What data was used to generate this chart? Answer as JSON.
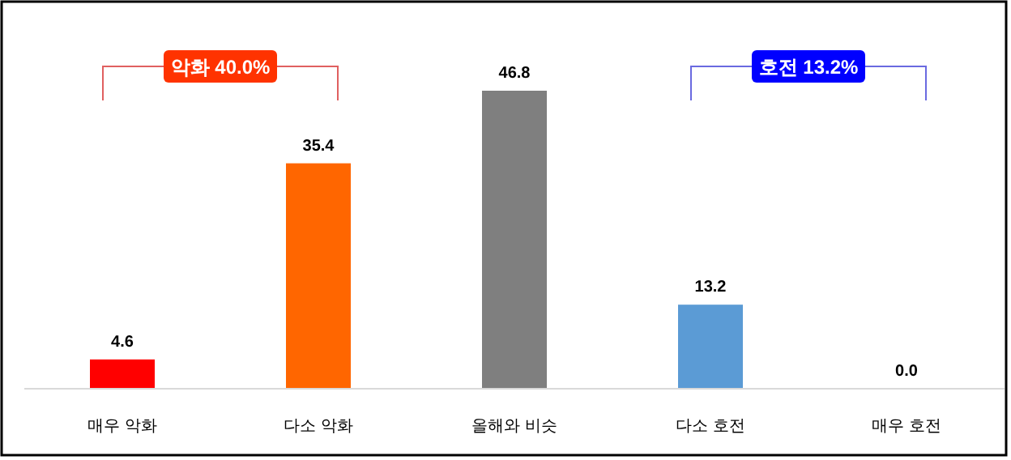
{
  "chart_data": {
    "type": "bar",
    "categories": [
      "매우 악화",
      "다소 악화",
      "올해와 비슷",
      "다소 호전",
      "매우 호전"
    ],
    "values": [
      4.6,
      35.4,
      46.8,
      13.2,
      0.0
    ],
    "colors": [
      "#ff0000",
      "#ff6600",
      "#7f7f7f",
      "#5b9bd5",
      "#5b9bd5"
    ],
    "value_labels": [
      "4.6",
      "35.4",
      "46.8",
      "13.2",
      "0.0"
    ],
    "annotations": [
      "악화 40.0%",
      "호전 13.2%"
    ]
  }
}
